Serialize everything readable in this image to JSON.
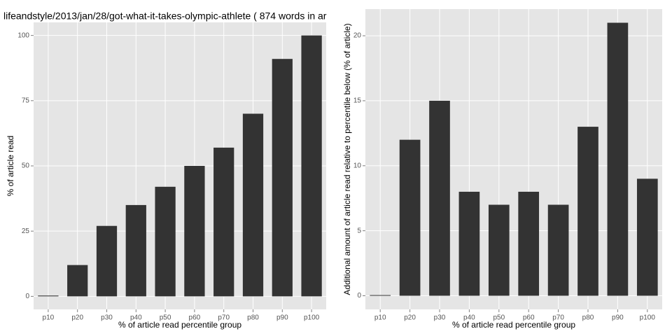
{
  "chart_data": [
    {
      "type": "bar",
      "title": "lifeandstyle/2013/jan/28/got-what-it-takes-olympic-athlete ( 874 words in ar",
      "x_label": "% of article read percentile group",
      "y_label": "% of article read",
      "categories": [
        "p10",
        "p20",
        "p30",
        "p40",
        "p50",
        "p60",
        "p70",
        "p80",
        "p90",
        "p100"
      ],
      "values": [
        0.3,
        12,
        27,
        35,
        42,
        50,
        57,
        70,
        91,
        100
      ],
      "color": "#333333",
      "ylim": [
        -5,
        105
      ],
      "yticks": [
        0,
        25,
        50,
        75,
        100
      ],
      "grid": true
    },
    {
      "type": "bar",
      "x_label": "% of article read percentile group",
      "y_label": "Additional amount of article read relative to percentile below (% of article)",
      "categories": [
        "p10",
        "p20",
        "p30",
        "p40",
        "p50",
        "p60",
        "p70",
        "p80",
        "p90",
        "p100"
      ],
      "values": [
        0.05,
        12,
        15,
        8,
        7,
        8,
        7,
        13,
        21,
        9
      ],
      "color": "#333333",
      "ylim": [
        -1.05,
        22.05
      ],
      "yticks": [
        0,
        5,
        10,
        15,
        20
      ],
      "grid": true
    }
  ]
}
